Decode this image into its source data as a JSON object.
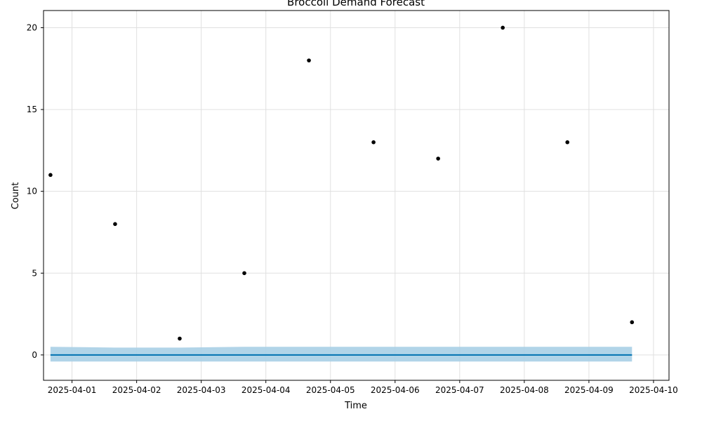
{
  "chart_data": {
    "type": "scatter",
    "title": "Broccoli Demand Forecast",
    "xlabel": "Time",
    "ylabel": "Count",
    "grid": true,
    "xlim": [
      "2025-03-31T13:25:00",
      "2025-04-10T05:45:00"
    ],
    "ylim": [
      -1.55,
      21.05
    ],
    "x_ticks": [
      "2025-04-01",
      "2025-04-02",
      "2025-04-03",
      "2025-04-04",
      "2025-04-05",
      "2025-04-06",
      "2025-04-07",
      "2025-04-08",
      "2025-04-09",
      "2025-04-10"
    ],
    "y_ticks": [
      0,
      5,
      10,
      15,
      20
    ],
    "observed": {
      "x": [
        "2025-03-31T16:00:00",
        "2025-04-01T16:00:00",
        "2025-04-02T16:00:00",
        "2025-04-03T16:00:00",
        "2025-04-04T16:00:00",
        "2025-04-05T16:00:00",
        "2025-04-06T16:00:00",
        "2025-04-07T16:00:00",
        "2025-04-08T16:00:00",
        "2025-04-09T16:00:00"
      ],
      "y": [
        11,
        8,
        1,
        5,
        18,
        13,
        12,
        20,
        13,
        2
      ]
    },
    "forecast": {
      "x": [
        "2025-03-31T16:00:00",
        "2025-04-01T16:00:00",
        "2025-04-02T16:00:00",
        "2025-04-03T16:00:00",
        "2025-04-04T16:00:00",
        "2025-04-05T16:00:00",
        "2025-04-06T16:00:00",
        "2025-04-07T16:00:00",
        "2025-04-08T16:00:00",
        "2025-04-09T16:00:00"
      ],
      "yhat": [
        0,
        0,
        0,
        0,
        0,
        0,
        0,
        0,
        0,
        0
      ],
      "yhat_lower": [
        -0.4,
        -0.4,
        -0.4,
        -0.4,
        -0.4,
        -0.4,
        -0.4,
        -0.4,
        -0.4,
        -0.4
      ],
      "yhat_upper": [
        0.5,
        0.45,
        0.45,
        0.5,
        0.5,
        0.5,
        0.5,
        0.5,
        0.5,
        0.5
      ]
    },
    "colors": {
      "forecast_line": "#0072B2",
      "interval": "#a8cfe6",
      "points": "#000000",
      "grid": "#e0e0e0"
    }
  }
}
